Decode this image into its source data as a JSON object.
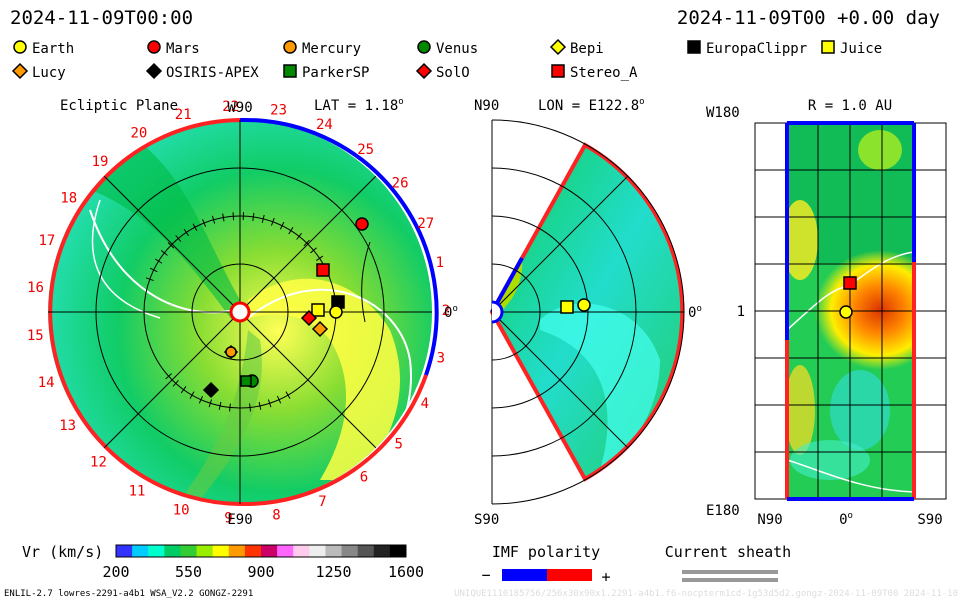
{
  "header": {
    "date_left": "2024-11-09T00:00",
    "date_right": "2024-11-09T00 +0.00 day"
  },
  "legend": {
    "items": [
      {
        "label": "Earth",
        "shape": "circle",
        "color": "#ffff00"
      },
      {
        "label": "Mars",
        "shape": "circle",
        "color": "#ff0000"
      },
      {
        "label": "Mercury",
        "shape": "circle",
        "color": "#ff9900"
      },
      {
        "label": "Venus",
        "shape": "circle",
        "color": "#008800"
      },
      {
        "label": "Bepi",
        "shape": "diamond",
        "color": "#ffff00"
      },
      {
        "label": "EuropaClippr",
        "shape": "square",
        "color": "#000000"
      },
      {
        "label": "Juice",
        "shape": "square",
        "color": "#ffff00"
      },
      {
        "label": "Lucy",
        "shape": "diamond",
        "color": "#ff9900"
      },
      {
        "label": "OSIRIS-APEX",
        "shape": "diamond",
        "color": "#000000"
      },
      {
        "label": "ParkerSP",
        "shape": "square",
        "color": "#008800"
      },
      {
        "label": "SolO",
        "shape": "diamond",
        "color": "#ff0000"
      },
      {
        "label": "Stereo_A",
        "shape": "square",
        "color": "#ff0000"
      }
    ]
  },
  "ecliptic": {
    "title": "Ecliptic Plane",
    "lat_label": "LAT = 1.18",
    "top_label": "W90",
    "bottom_label": "E90",
    "right_label": "0",
    "degree_symbol": "o",
    "carrington_numbers": [
      "1",
      "2",
      "3",
      "4",
      "5",
      "6",
      "7",
      "8",
      "9",
      "10",
      "11",
      "12",
      "13",
      "14",
      "15",
      "16",
      "17",
      "18",
      "19",
      "20",
      "21",
      "22",
      "23",
      "24",
      "25",
      "26",
      "27"
    ]
  },
  "meridional": {
    "lon_label": "LON = E122.8",
    "top_label": "N90",
    "bottom_label": "S90",
    "right_label": "0",
    "degree_symbol": "o"
  },
  "latlon": {
    "title": "R = 1.0 AU",
    "top_label": "W180",
    "bottom_label": "E180",
    "mid_label": "1",
    "x_left": "N90",
    "x_mid": "0",
    "x_right": "S90",
    "degree_symbol": "o"
  },
  "colorbar": {
    "label": "Vr (km/s)",
    "ticks": [
      "200",
      "550",
      "900",
      "1250",
      "1600"
    ],
    "colors": [
      "#3333ff",
      "#00ccff",
      "#00ffcc",
      "#00cc66",
      "#33cc33",
      "#99ee00",
      "#ffff00",
      "#ff9900",
      "#ff3300",
      "#cc0066",
      "#ff66ff",
      "#ffccee",
      "#eeeeee",
      "#bbbbbb",
      "#888888",
      "#555555",
      "#222222",
      "#000000"
    ]
  },
  "imf": {
    "label": "IMF polarity",
    "minus": "−",
    "plus": "+",
    "neg_color": "#0000ff",
    "pos_color": "#ff0000"
  },
  "sheath": {
    "label": "Current sheath"
  },
  "footer": {
    "left": "ENLIL-2.7 lowres-2291-a4b1 WSA_V2.2 GONGZ-2291",
    "right": "UNIQUE1110185756/256x30x90x1.2291-a4b1.f6-nocpterm1cd-1g53d5d2.gongz-2024-11-09T00 2024-11-10"
  }
}
